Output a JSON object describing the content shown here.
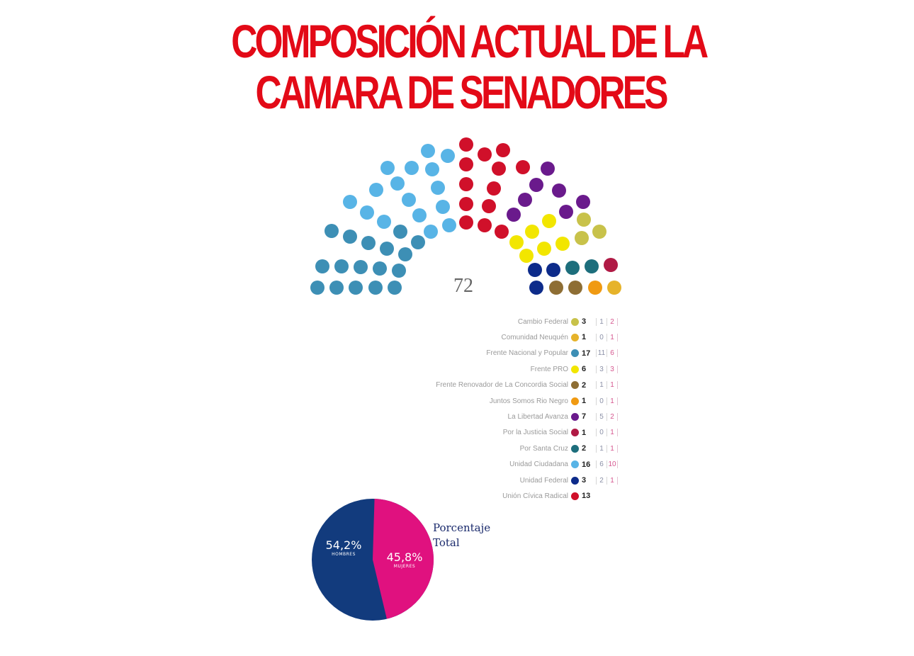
{
  "title": {
    "line1": "COMPOSICIÓN ACTUAL DE LA",
    "line2": "CAMARA DE  SENADORES"
  },
  "parliament": {
    "total_label": "72",
    "total_seats": 72
  },
  "legend": [
    {
      "name": "Cambio Federal",
      "seats": "3",
      "men": "1",
      "women": "2",
      "color": "#c8c24a"
    },
    {
      "name": "Comunidad Neuquén",
      "seats": "1",
      "men": "0",
      "women": "1",
      "color": "#e6b32a"
    },
    {
      "name": "Frente Nacional y Popular",
      "seats": "17",
      "men": "11",
      "women": "6",
      "color": "#3d8fb5"
    },
    {
      "name": "Frente PRO",
      "seats": "6",
      "men": "3",
      "women": "3",
      "color": "#f2e600"
    },
    {
      "name": "Frente Renovador de La Concordia Social",
      "seats": "2",
      "men": "1",
      "women": "1",
      "color": "#8e6e34"
    },
    {
      "name": "Juntos Somos Rio Negro",
      "seats": "1",
      "men": "0",
      "women": "1",
      "color": "#f09a12"
    },
    {
      "name": "La Libertad Avanza",
      "seats": "7",
      "men": "5",
      "women": "2",
      "color": "#6a1a8c"
    },
    {
      "name": "Por la Justicia Social",
      "seats": "1",
      "men": "0",
      "women": "1",
      "color": "#b01a45"
    },
    {
      "name": "Por Santa Cruz",
      "seats": "2",
      "men": "1",
      "women": "1",
      "color": "#1d6e7c"
    },
    {
      "name": "Unidad Ciudadana",
      "seats": "16",
      "men": "6",
      "women": "10",
      "color": "#58b4e6"
    },
    {
      "name": "Unidad Federal",
      "seats": "3",
      "men": "2",
      "women": "1",
      "color": "#0d2b8a"
    },
    {
      "name": "Unión Cívica Radical",
      "seats": "13",
      "men": "",
      "women": "",
      "color": "#d0102a"
    }
  ],
  "pie": {
    "title_line1": "Porcentaje",
    "title_line2": "Total",
    "men_pct": "54,2%",
    "men_label": "HOMBRES",
    "men_color": "#123b7d",
    "women_pct": "45,8%",
    "women_label": "MUJERES",
    "women_color": "#e0117f"
  },
  "chart_data": [
    {
      "type": "parliament",
      "title": "COMPOSICIÓN ACTUAL DE LA CAMARA DE SENADORES",
      "total": 72,
      "categories": [
        "Cambio Federal",
        "Comunidad Neuquén",
        "Frente Nacional y Popular",
        "Frente PRO",
        "Frente Renovador de La Concordia Social",
        "Juntos Somos Rio Negro",
        "La Libertad Avanza",
        "Por la Justicia Social",
        "Por Santa Cruz",
        "Unidad Ciudadana",
        "Unidad Federal",
        "Unión Cívica Radical"
      ],
      "values": [
        3,
        1,
        17,
        6,
        2,
        1,
        7,
        1,
        2,
        16,
        3,
        13
      ],
      "series": [
        {
          "name": "Hombres",
          "values": [
            1,
            0,
            11,
            3,
            1,
            0,
            5,
            0,
            1,
            6,
            2,
            null
          ]
        },
        {
          "name": "Mujeres",
          "values": [
            2,
            1,
            6,
            3,
            1,
            1,
            2,
            1,
            1,
            10,
            1,
            null
          ]
        }
      ],
      "colors": [
        "#c8c24a",
        "#e6b32a",
        "#3d8fb5",
        "#f2e600",
        "#8e6e34",
        "#f09a12",
        "#6a1a8c",
        "#b01a45",
        "#1d6e7c",
        "#58b4e6",
        "#0d2b8a",
        "#d0102a"
      ],
      "legend_position": "below-right"
    },
    {
      "type": "pie",
      "title": "Porcentaje Total",
      "categories": [
        "Hombres",
        "Mujeres"
      ],
      "values": [
        54.2,
        45.8
      ],
      "colors": [
        "#123b7d",
        "#e0117f"
      ]
    }
  ]
}
